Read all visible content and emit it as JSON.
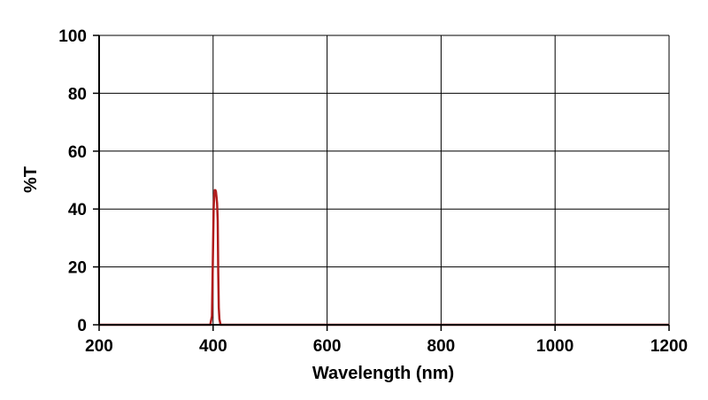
{
  "chart_data": {
    "type": "line",
    "xlabel": "Wavelength (nm)",
    "ylabel": "%T",
    "xlim": [
      200,
      1200
    ],
    "ylim": [
      0,
      100
    ],
    "xticks": [
      200,
      400,
      600,
      800,
      1000,
      1200
    ],
    "yticks": [
      0,
      20,
      40,
      60,
      80,
      100
    ],
    "grid": true,
    "colors": {
      "series": "#b01c1c",
      "grid": "#000000",
      "axis": "#000000"
    },
    "series": [
      {
        "x": [
          200,
          395,
          398,
          400,
          401,
          402,
          403,
          404,
          405,
          406,
          407,
          408,
          409,
          410,
          411,
          413,
          416,
          1200
        ],
        "y": [
          0,
          0,
          3,
          28,
          40,
          45,
          46.5,
          46.5,
          46,
          44,
          42,
          36,
          18,
          6,
          2,
          0,
          0,
          0
        ]
      }
    ]
  }
}
